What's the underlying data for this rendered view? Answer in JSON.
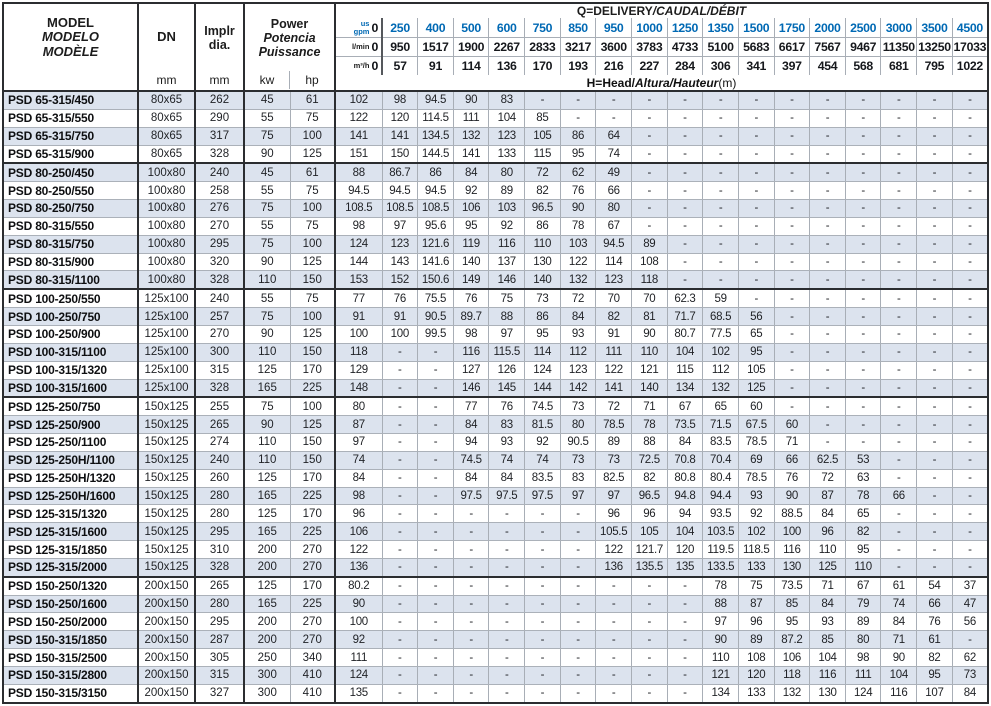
{
  "colors": {
    "accent_blue": "#0069b4",
    "stripe_row": "#dce3ee",
    "border_dark": "#2b2d30"
  },
  "left_header": {
    "model_lines": [
      "MODEL",
      "MODELO",
      "MODÈLE"
    ],
    "dn_label": "DN",
    "dn_unit": "mm",
    "impeller_lines": [
      "Implr",
      "dia."
    ],
    "impeller_unit": "mm",
    "power_lines": [
      "Power",
      "Potencia",
      "Puissance"
    ],
    "power_unit_kw": "kw",
    "power_unit_hp": "hp"
  },
  "q_header": {
    "title_roman": "Q=DELIVERY",
    "title_italic": "/CAUDAL/DÉBIT",
    "h_roman": "H=Head/",
    "h_italic": "Altura/Hauteur",
    "h_suffix": "(m)",
    "unit_rows": [
      {
        "key": "gpm",
        "unit_lines": [
          "us",
          "gpm"
        ],
        "blue": true,
        "values": [
          "0",
          "250",
          "400",
          "500",
          "600",
          "750",
          "850",
          "950",
          "1000",
          "1250",
          "1350",
          "1500",
          "1750",
          "2000",
          "2500",
          "3000",
          "3500",
          "4500"
        ]
      },
      {
        "key": "lmin",
        "unit_lines": [
          "l/min"
        ],
        "blue": false,
        "values": [
          "0",
          "950",
          "1517",
          "1900",
          "2267",
          "2833",
          "3217",
          "3600",
          "3783",
          "4733",
          "5100",
          "5683",
          "6617",
          "7567",
          "9467",
          "11350",
          "13250",
          "17033"
        ]
      },
      {
        "key": "m3h",
        "unit_lines": [
          "m³/h"
        ],
        "blue": false,
        "values": [
          "0",
          "57",
          "91",
          "114",
          "136",
          "170",
          "193",
          "216",
          "227",
          "284",
          "306",
          "341",
          "397",
          "454",
          "568",
          "681",
          "795",
          "1022"
        ]
      }
    ]
  },
  "rows": [
    {
      "model": "PSD 65-315/450",
      "dn": "80x65",
      "dia": "262",
      "kw": "45",
      "hp": "61",
      "head": [
        "102",
        "98",
        "94.5",
        "90",
        "83",
        "-",
        "-",
        "-",
        "-",
        "-",
        "-",
        "-",
        "-",
        "-",
        "-",
        "-",
        "-",
        "-"
      ]
    },
    {
      "model": "PSD 65-315/550",
      "dn": "80x65",
      "dia": "290",
      "kw": "55",
      "hp": "75",
      "head": [
        "122",
        "120",
        "114.5",
        "111",
        "104",
        "85",
        "-",
        "-",
        "-",
        "-",
        "-",
        "-",
        "-",
        "-",
        "-",
        "-",
        "-",
        "-"
      ]
    },
    {
      "model": "PSD 65-315/750",
      "dn": "80x65",
      "dia": "317",
      "kw": "75",
      "hp": "100",
      "head": [
        "141",
        "141",
        "134.5",
        "132",
        "123",
        "105",
        "86",
        "64",
        "-",
        "-",
        "-",
        "-",
        "-",
        "-",
        "-",
        "-",
        "-",
        "-"
      ]
    },
    {
      "model": "PSD 65-315/900",
      "dn": "80x65",
      "dia": "328",
      "kw": "90",
      "hp": "125",
      "head": [
        "151",
        "150",
        "144.5",
        "141",
        "133",
        "115",
        "95",
        "74",
        "-",
        "-",
        "-",
        "-",
        "-",
        "-",
        "-",
        "-",
        "-",
        "-"
      ]
    },
    {
      "model": "PSD 80-250/450",
      "dn": "100x80",
      "dia": "240",
      "kw": "45",
      "hp": "61",
      "head": [
        "88",
        "86.7",
        "86",
        "84",
        "80",
        "72",
        "62",
        "49",
        "-",
        "-",
        "-",
        "-",
        "-",
        "-",
        "-",
        "-",
        "-",
        "-"
      ]
    },
    {
      "model": "PSD 80-250/550",
      "dn": "100x80",
      "dia": "258",
      "kw": "55",
      "hp": "75",
      "head": [
        "94.5",
        "94.5",
        "94.5",
        "92",
        "89",
        "82",
        "76",
        "66",
        "-",
        "-",
        "-",
        "-",
        "-",
        "-",
        "-",
        "-",
        "-",
        "-"
      ]
    },
    {
      "model": "PSD 80-250/750",
      "dn": "100x80",
      "dia": "276",
      "kw": "75",
      "hp": "100",
      "head": [
        "108.5",
        "108.5",
        "108.5",
        "106",
        "103",
        "96.5",
        "90",
        "80",
        "-",
        "-",
        "-",
        "-",
        "-",
        "-",
        "-",
        "-",
        "-",
        "-"
      ]
    },
    {
      "model": "PSD 80-315/550",
      "dn": "100x80",
      "dia": "270",
      "kw": "55",
      "hp": "75",
      "head": [
        "98",
        "97",
        "95.6",
        "95",
        "92",
        "86",
        "78",
        "67",
        "-",
        "-",
        "-",
        "-",
        "-",
        "-",
        "-",
        "-",
        "-",
        "-"
      ]
    },
    {
      "model": "PSD 80-315/750",
      "dn": "100x80",
      "dia": "295",
      "kw": "75",
      "hp": "100",
      "head": [
        "124",
        "123",
        "121.6",
        "119",
        "116",
        "110",
        "103",
        "94.5",
        "89",
        "-",
        "-",
        "-",
        "-",
        "-",
        "-",
        "-",
        "-",
        "-"
      ]
    },
    {
      "model": "PSD 80-315/900",
      "dn": "100x80",
      "dia": "320",
      "kw": "90",
      "hp": "125",
      "head": [
        "144",
        "143",
        "141.6",
        "140",
        "137",
        "130",
        "122",
        "114",
        "108",
        "-",
        "-",
        "-",
        "-",
        "-",
        "-",
        "-",
        "-",
        "-"
      ]
    },
    {
      "model": "PSD 80-315/1100",
      "dn": "100x80",
      "dia": "328",
      "kw": "110",
      "hp": "150",
      "head": [
        "153",
        "152",
        "150.6",
        "149",
        "146",
        "140",
        "132",
        "123",
        "118",
        "-",
        "-",
        "-",
        "-",
        "-",
        "-",
        "-",
        "-",
        "-"
      ]
    },
    {
      "model": "PSD 100-250/550",
      "dn": "125x100",
      "dia": "240",
      "kw": "55",
      "hp": "75",
      "head": [
        "77",
        "76",
        "75.5",
        "76",
        "75",
        "73",
        "72",
        "70",
        "70",
        "62.3",
        "59",
        "-",
        "-",
        "-",
        "-",
        "-",
        "-",
        "-"
      ]
    },
    {
      "model": "PSD 100-250/750",
      "dn": "125x100",
      "dia": "257",
      "kw": "75",
      "hp": "100",
      "head": [
        "91",
        "91",
        "90.5",
        "89.7",
        "88",
        "86",
        "84",
        "82",
        "81",
        "71.7",
        "68.5",
        "56",
        "-",
        "-",
        "-",
        "-",
        "-",
        "-"
      ]
    },
    {
      "model": "PSD 100-250/900",
      "dn": "125x100",
      "dia": "270",
      "kw": "90",
      "hp": "125",
      "head": [
        "100",
        "100",
        "99.5",
        "98",
        "97",
        "95",
        "93",
        "91",
        "90",
        "80.7",
        "77.5",
        "65",
        "-",
        "-",
        "-",
        "-",
        "-",
        "-"
      ]
    },
    {
      "model": "PSD 100-315/1100",
      "dn": "125x100",
      "dia": "300",
      "kw": "110",
      "hp": "150",
      "head": [
        "118",
        "-",
        "-",
        "116",
        "115.5",
        "114",
        "112",
        "111",
        "110",
        "104",
        "102",
        "95",
        "-",
        "-",
        "-",
        "-",
        "-",
        "-"
      ]
    },
    {
      "model": "PSD 100-315/1320",
      "dn": "125x100",
      "dia": "315",
      "kw": "125",
      "hp": "170",
      "head": [
        "129",
        "-",
        "-",
        "127",
        "126",
        "124",
        "123",
        "122",
        "121",
        "115",
        "112",
        "105",
        "-",
        "-",
        "-",
        "-",
        "-",
        "-"
      ]
    },
    {
      "model": "PSD 100-315/1600",
      "dn": "125x100",
      "dia": "328",
      "kw": "165",
      "hp": "225",
      "head": [
        "148",
        "-",
        "-",
        "146",
        "145",
        "144",
        "142",
        "141",
        "140",
        "134",
        "132",
        "125",
        "-",
        "-",
        "-",
        "-",
        "-",
        "-"
      ]
    },
    {
      "model": "PSD 125-250/750",
      "dn": "150x125",
      "dia": "255",
      "kw": "75",
      "hp": "100",
      "head": [
        "80",
        "-",
        "-",
        "77",
        "76",
        "74.5",
        "73",
        "72",
        "71",
        "67",
        "65",
        "60",
        "-",
        "-",
        "-",
        "-",
        "-",
        "-"
      ]
    },
    {
      "model": "PSD 125-250/900",
      "dn": "150x125",
      "dia": "265",
      "kw": "90",
      "hp": "125",
      "head": [
        "87",
        "-",
        "-",
        "84",
        "83",
        "81.5",
        "80",
        "78.5",
        "78",
        "73.5",
        "71.5",
        "67.5",
        "60",
        "-",
        "-",
        "-",
        "-",
        "-"
      ]
    },
    {
      "model": "PSD 125-250/1100",
      "dn": "150x125",
      "dia": "274",
      "kw": "110",
      "hp": "150",
      "head": [
        "97",
        "-",
        "-",
        "94",
        "93",
        "92",
        "90.5",
        "89",
        "88",
        "84",
        "83.5",
        "78.5",
        "71",
        "-",
        "-",
        "-",
        "-",
        "-"
      ]
    },
    {
      "model": "PSD 125-250H/1100",
      "dn": "150x125",
      "dia": "240",
      "kw": "110",
      "hp": "150",
      "head": [
        "74",
        "-",
        "-",
        "74.5",
        "74",
        "74",
        "73",
        "73",
        "72.5",
        "70.8",
        "70.4",
        "69",
        "66",
        "62.5",
        "53",
        "-",
        "-",
        "-"
      ]
    },
    {
      "model": "PSD 125-250H/1320",
      "dn": "150x125",
      "dia": "260",
      "kw": "125",
      "hp": "170",
      "head": [
        "84",
        "-",
        "-",
        "84",
        "84",
        "83.5",
        "83",
        "82.5",
        "82",
        "80.8",
        "80.4",
        "78.5",
        "76",
        "72",
        "63",
        "-",
        "-",
        "-"
      ]
    },
    {
      "model": "PSD 125-250H/1600",
      "dn": "150x125",
      "dia": "280",
      "kw": "165",
      "hp": "225",
      "head": [
        "98",
        "-",
        "-",
        "97.5",
        "97.5",
        "97.5",
        "97",
        "97",
        "96.5",
        "94.8",
        "94.4",
        "93",
        "90",
        "87",
        "78",
        "66",
        "-",
        "-"
      ]
    },
    {
      "model": "PSD 125-315/1320",
      "dn": "150x125",
      "dia": "280",
      "kw": "125",
      "hp": "170",
      "head": [
        "96",
        "-",
        "-",
        "-",
        "-",
        "-",
        "-",
        "96",
        "96",
        "94",
        "93.5",
        "92",
        "88.5",
        "84",
        "65",
        "-",
        "-",
        "-"
      ]
    },
    {
      "model": "PSD 125-315/1600",
      "dn": "150x125",
      "dia": "295",
      "kw": "165",
      "hp": "225",
      "head": [
        "106",
        "-",
        "-",
        "-",
        "-",
        "-",
        "-",
        "105.5",
        "105",
        "104",
        "103.5",
        "102",
        "100",
        "96",
        "82",
        "-",
        "-",
        "-"
      ]
    },
    {
      "model": "PSD 125-315/1850",
      "dn": "150x125",
      "dia": "310",
      "kw": "200",
      "hp": "270",
      "head": [
        "122",
        "-",
        "-",
        "-",
        "-",
        "-",
        "-",
        "122",
        "121.7",
        "120",
        "119.5",
        "118.5",
        "116",
        "110",
        "95",
        "-",
        "-",
        "-"
      ]
    },
    {
      "model": "PSD 125-315/2000",
      "dn": "150x125",
      "dia": "328",
      "kw": "200",
      "hp": "270",
      "head": [
        "136",
        "-",
        "-",
        "-",
        "-",
        "-",
        "-",
        "136",
        "135.5",
        "135",
        "133.5",
        "133",
        "130",
        "125",
        "110",
        "-",
        "-",
        "-"
      ]
    },
    {
      "model": "PSD 150-250/1320",
      "dn": "200x150",
      "dia": "265",
      "kw": "125",
      "hp": "170",
      "head": [
        "80.2",
        "-",
        "-",
        "-",
        "-",
        "-",
        "-",
        "-",
        "-",
        "-",
        "78",
        "75",
        "73.5",
        "71",
        "67",
        "61",
        "54",
        "37"
      ]
    },
    {
      "model": "PSD 150-250/1600",
      "dn": "200x150",
      "dia": "280",
      "kw": "165",
      "hp": "225",
      "head": [
        "90",
        "-",
        "-",
        "-",
        "-",
        "-",
        "-",
        "-",
        "-",
        "-",
        "88",
        "87",
        "85",
        "84",
        "79",
        "74",
        "66",
        "47"
      ]
    },
    {
      "model": "PSD 150-250/2000",
      "dn": "200x150",
      "dia": "295",
      "kw": "200",
      "hp": "270",
      "head": [
        "100",
        "-",
        "-",
        "-",
        "-",
        "-",
        "-",
        "-",
        "-",
        "-",
        "97",
        "96",
        "95",
        "93",
        "89",
        "84",
        "76",
        "56"
      ]
    },
    {
      "model": "PSD 150-315/1850",
      "dn": "200x150",
      "dia": "287",
      "kw": "200",
      "hp": "270",
      "head": [
        "92",
        "-",
        "-",
        "-",
        "-",
        "-",
        "-",
        "-",
        "-",
        "-",
        "90",
        "89",
        "87.2",
        "85",
        "80",
        "71",
        "61",
        "-"
      ]
    },
    {
      "model": "PSD 150-315/2500",
      "dn": "200x150",
      "dia": "305",
      "kw": "250",
      "hp": "340",
      "head": [
        "111",
        "-",
        "-",
        "-",
        "-",
        "-",
        "-",
        "-",
        "-",
        "-",
        "110",
        "108",
        "106",
        "104",
        "98",
        "90",
        "82",
        "62"
      ]
    },
    {
      "model": "PSD 150-315/2800",
      "dn": "200x150",
      "dia": "315",
      "kw": "300",
      "hp": "410",
      "head": [
        "124",
        "-",
        "-",
        "-",
        "-",
        "-",
        "-",
        "-",
        "-",
        "-",
        "121",
        "120",
        "118",
        "116",
        "111",
        "104",
        "95",
        "73"
      ]
    },
    {
      "model": "PSD 150-315/3150",
      "dn": "200x150",
      "dia": "327",
      "kw": "300",
      "hp": "410",
      "head": [
        "135",
        "-",
        "-",
        "-",
        "-",
        "-",
        "-",
        "-",
        "-",
        "-",
        "134",
        "133",
        "132",
        "130",
        "124",
        "116",
        "107",
        "84"
      ]
    }
  ]
}
